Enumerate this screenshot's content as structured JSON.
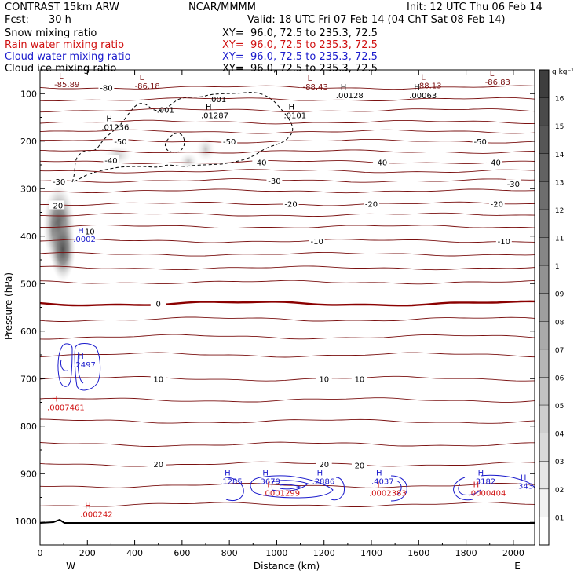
{
  "header": {
    "model": "CONTRAST 15km ARW",
    "org": "NCAR/MMMM",
    "init": "Init: 12 UTC Thu 06 Feb 14",
    "fcst_label": "Fcst:",
    "fcst_value": "30 h",
    "valid": "Valid: 18 UTC Fri 07 Feb 14 (04 ChT Sat 08 Feb 14)"
  },
  "fields": [
    {
      "name": "Snow mixing ratio",
      "xy": "XY=  96.0, 72.5 to 235.3, 72.5",
      "color": "#000000"
    },
    {
      "name": "Rain water mixing ratio",
      "xy": "XY=  96.0, 72.5 to 235.3, 72.5",
      "color": "#d01010"
    },
    {
      "name": "Cloud water mixing ratio",
      "xy": "XY=  96.0, 72.5 to 235.3, 72.5",
      "color": "#1a1acc"
    },
    {
      "name": "Cloud ice mixing ratio",
      "xy": "XY=  96.0, 72.5 to 235.3, 72.5",
      "color": "#000000"
    }
  ],
  "chart_data": {
    "type": "cross-section contour",
    "xlabel": "Distance (km)",
    "ylabel": "Pressure (hPa)",
    "xlim": [
      0,
      2090
    ],
    "ylim": [
      1050,
      50
    ],
    "x_ticks": [
      0,
      200,
      400,
      600,
      800,
      1000,
      1200,
      1400,
      1600,
      1800,
      2000
    ],
    "y_ticks": [
      100,
      200,
      300,
      400,
      500,
      600,
      700,
      800,
      900,
      1000
    ],
    "direction_left": "W",
    "direction_right": "E",
    "colorbar": {
      "unit": "g kg⁻¹",
      "levels": [
        ".01",
        ".02",
        ".03",
        ".04",
        ".05",
        ".06",
        ".07",
        ".08",
        ".09",
        ".1",
        ".11",
        ".12",
        ".13",
        ".14",
        ".15",
        ".16"
      ],
      "colors": [
        "#ffffff",
        "#f2f2f2",
        "#e6e6e6",
        "#dadada",
        "#cecece",
        "#c2c2c2",
        "#b6b6b6",
        "#aaaaaa",
        "#9e9e9e",
        "#929292",
        "#868686",
        "#7a7a7a",
        "#6e6e6e",
        "#626262",
        "#565656",
        "#4a4a4a",
        "#3e3e3e"
      ]
    },
    "temperature_contours": {
      "color": "#7a1010",
      "zero_color": "#8b0000",
      "lines": [
        {
          "p": 87,
          "label": "-80",
          "label_x": 280
        },
        {
          "p": 112,
          "label": "",
          "label_x": 0
        },
        {
          "p": 135,
          "label": "",
          "label_x": 0
        },
        {
          "p": 160,
          "label": "",
          "label_x": 0
        },
        {
          "p": 180,
          "label": "",
          "label_x": 0
        },
        {
          "p": 200,
          "label": "-50",
          "label_x": 800
        },
        {
          "p": 222,
          "label": "",
          "label_x": 0
        },
        {
          "p": 244,
          "label": "-40",
          "label_x": 930
        },
        {
          "p": 263,
          "label": "",
          "label_x": 0
        },
        {
          "p": 283,
          "label": "-30",
          "label_x": 990
        },
        {
          "p": 305,
          "label": "",
          "label_x": 0
        },
        {
          "p": 332,
          "label": "-20",
          "label_x": 1060
        },
        {
          "p": 355,
          "label": "",
          "label_x": 0
        },
        {
          "p": 380,
          "label": "",
          "label_x": 0
        },
        {
          "p": 410,
          "label": "-10",
          "label_x": 1170
        },
        {
          "p": 438,
          "label": "",
          "label_x": 0
        },
        {
          "p": 467,
          "label": "",
          "label_x": 0
        },
        {
          "p": 497,
          "label": "",
          "label_x": 0
        },
        {
          "p": 542,
          "label": "0",
          "label_x": 500
        },
        {
          "p": 575,
          "label": "",
          "label_x": 0
        },
        {
          "p": 612,
          "label": "",
          "label_x": 0
        },
        {
          "p": 650,
          "label": "",
          "label_x": 0
        },
        {
          "p": 700,
          "label": "10",
          "label_x": 500
        },
        {
          "p": 745,
          "label": "",
          "label_x": 0
        },
        {
          "p": 790,
          "label": "",
          "label_x": 0
        },
        {
          "p": 838,
          "label": "",
          "label_x": 0
        },
        {
          "p": 880,
          "label": "20",
          "label_x": 500
        },
        {
          "p": 925,
          "label": "",
          "label_x": 0
        },
        {
          "p": 965,
          "label": "",
          "label_x": 0
        }
      ],
      "extra_labels": [
        {
          "x": 1440,
          "p": 244,
          "label": "-40"
        },
        {
          "x": 1920,
          "p": 244,
          "label": "-40"
        },
        {
          "x": 1860,
          "p": 200,
          "label": "-50"
        },
        {
          "x": 1930,
          "p": 332,
          "label": "-20"
        },
        {
          "x": 1960,
          "p": 410,
          "label": "-10"
        },
        {
          "x": 210,
          "p": 390,
          "label": "10"
        },
        {
          "x": 1400,
          "p": 332,
          "label": "-20"
        },
        {
          "x": 1200,
          "p": 700,
          "label": "10"
        },
        {
          "x": 1350,
          "p": 700,
          "label": "10"
        },
        {
          "x": 1200,
          "p": 880,
          "label": "20"
        },
        {
          "x": 1350,
          "p": 882,
          "label": "20"
        },
        {
          "x": 2000,
          "p": 290,
          "label": "-30"
        },
        {
          "x": 80,
          "p": 285,
          "label": "-30"
        },
        {
          "x": 70,
          "p": 335,
          "label": "-20"
        },
        {
          "x": 340,
          "p": 200,
          "label": "-50"
        },
        {
          "x": 300,
          "p": 240,
          "label": "-40"
        }
      ]
    },
    "min_max_labels": [
      {
        "type": "L",
        "value": "-85.89",
        "x": 60,
        "p": 85,
        "color": "#7a1010"
      },
      {
        "type": "L",
        "value": "-86.18",
        "x": 400,
        "p": 88,
        "color": "#7a1010"
      },
      {
        "type": "L",
        "value": "-88.43",
        "x": 1110,
        "p": 90,
        "color": "#7a1010"
      },
      {
        "type": "L",
        "value": "-88.13",
        "x": 1590,
        "p": 87,
        "color": "#7a1010"
      },
      {
        "type": "L",
        "value": "-86.83",
        "x": 1880,
        "p": 80,
        "color": "#7a1010"
      },
      {
        "type": "H",
        "value": ".00128",
        "x": 1250,
        "p": 108,
        "color": "#000000"
      },
      {
        "type": "H",
        "value": ".00063",
        "x": 1560,
        "p": 108,
        "color": "#000000"
      },
      {
        "type": "H",
        "value": ".01287",
        "x": 680,
        "p": 150,
        "color": "#000000"
      },
      {
        "type": "H",
        "value": ".0101",
        "x": 1030,
        "p": 150,
        "color": "#000000"
      },
      {
        "type": "H",
        "value": ".01236",
        "x": 260,
        "p": 175,
        "color": "#000000"
      },
      {
        "type": "H",
        "value": ".0002",
        "x": 140,
        "p": 410,
        "color": "#1a1acc"
      },
      {
        "type": "H",
        "value": ".2497",
        "x": 140,
        "p": 675,
        "color": "#1a1acc"
      },
      {
        "type": "H",
        "value": ".0007461",
        "x": 30,
        "p": 765,
        "color": "#d01010"
      },
      {
        "type": "H",
        "value": ".1285",
        "x": 760,
        "p": 920,
        "color": "#1a1acc"
      },
      {
        "type": "H",
        "value": ".3679",
        "x": 920,
        "p": 920,
        "color": "#1a1acc"
      },
      {
        "type": "H",
        "value": ".2886",
        "x": 1150,
        "p": 920,
        "color": "#1a1acc"
      },
      {
        "type": "H",
        "value": ".4037",
        "x": 1400,
        "p": 920,
        "color": "#1a1acc"
      },
      {
        "type": "H",
        "value": ".3182",
        "x": 1830,
        "p": 920,
        "color": "#1a1acc"
      },
      {
        "type": "H",
        "value": ".343",
        "x": 2010,
        "p": 930,
        "color": "#1a1acc"
      },
      {
        "type": "H",
        "value": ".0001299",
        "x": 940,
        "p": 945,
        "color": "#d01010"
      },
      {
        "type": "H",
        "value": ".0002383",
        "x": 1390,
        "p": 945,
        "color": "#d01010"
      },
      {
        "type": "H",
        "value": ".0000404",
        "x": 1810,
        "p": 945,
        "color": "#d01010"
      },
      {
        "type": "H",
        "value": ".000242",
        "x": 170,
        "p": 990,
        "color": "#d01010"
      }
    ],
    "ice_contour_labels": [
      {
        "x": 750,
        "p": 118,
        "label": ".001"
      },
      {
        "x": 530,
        "p": 140,
        "label": ".001"
      }
    ]
  }
}
